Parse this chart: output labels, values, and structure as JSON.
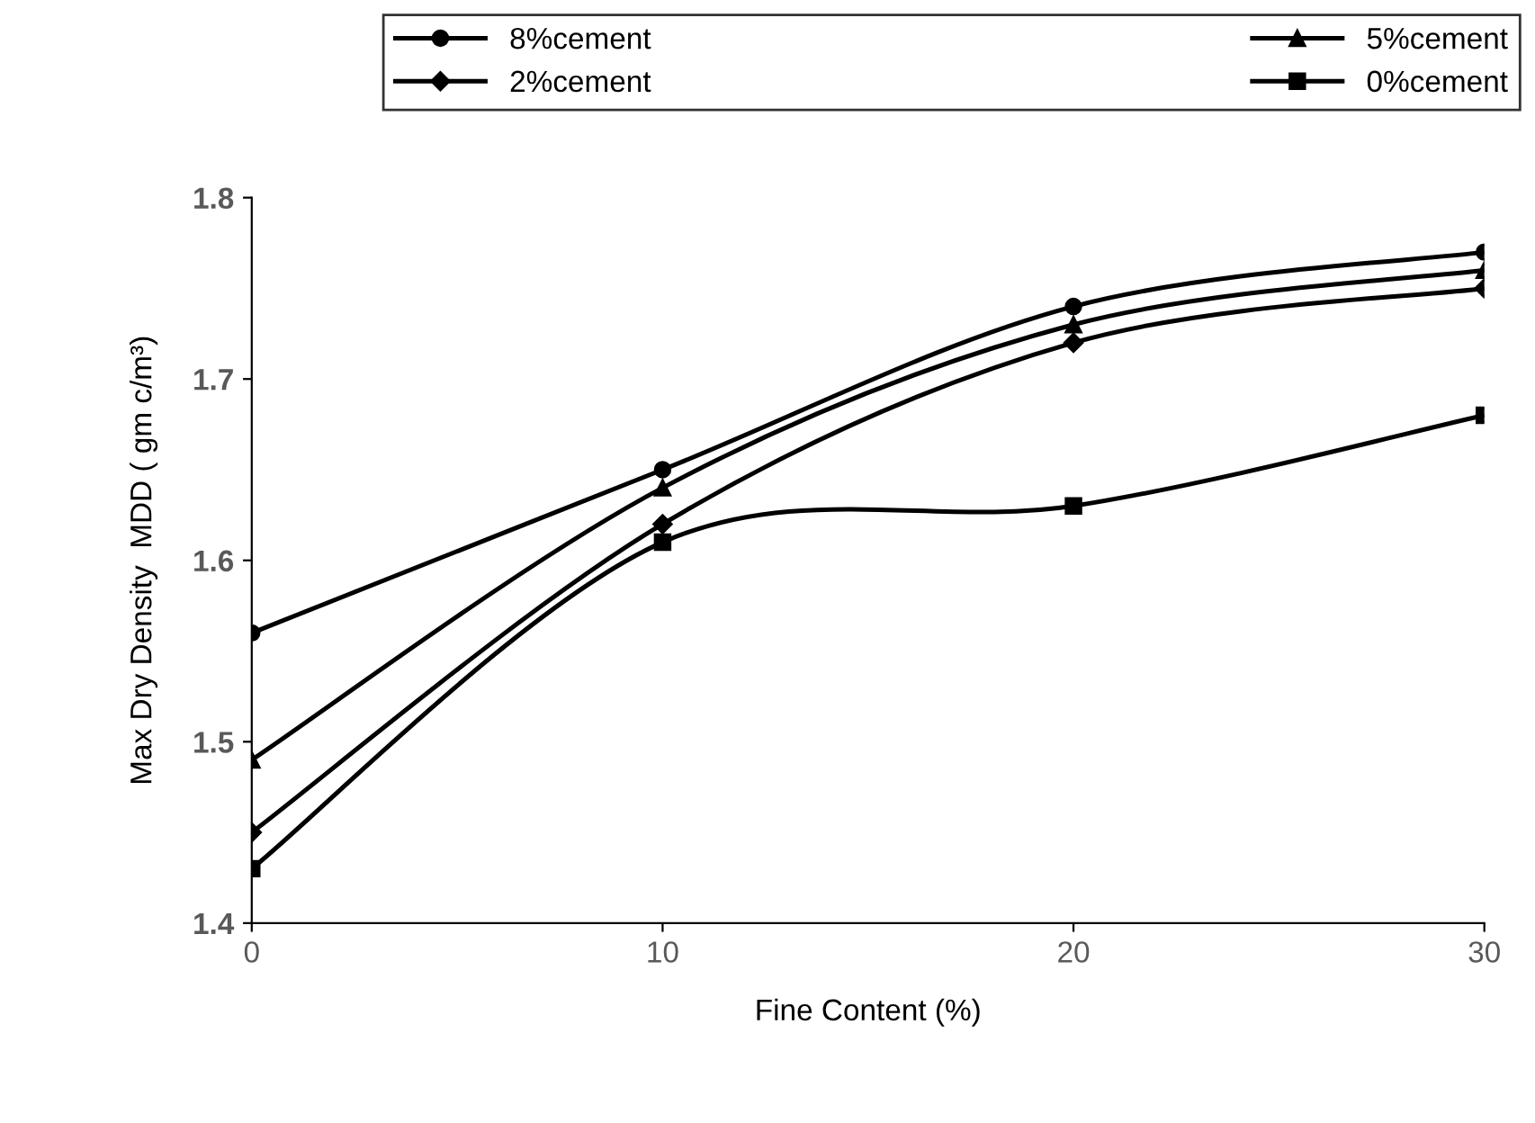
{
  "chart_data": {
    "type": "line",
    "xlabel": "Fine Content (%)",
    "ylabel": "Max Dry Density  MDD ( gm c/m³)",
    "x": [
      0,
      10,
      20,
      30
    ],
    "series": [
      {
        "name": "8%cement",
        "color": "#000000",
        "marker": "circle",
        "values": [
          1.56,
          1.65,
          1.74,
          1.77
        ]
      },
      {
        "name": "5%cement",
        "color": "#000000",
        "marker": "triangle",
        "values": [
          1.49,
          1.64,
          1.73,
          1.76
        ]
      },
      {
        "name": "2%cement",
        "color": "#000000",
        "marker": "diamond",
        "values": [
          1.45,
          1.62,
          1.72,
          1.75
        ]
      },
      {
        "name": "0%cement",
        "color": "#000000",
        "marker": "square",
        "values": [
          1.43,
          1.61,
          1.63,
          1.68
        ]
      }
    ],
    "xlim": [
      0,
      30
    ],
    "xticks": [
      0,
      10,
      20,
      30
    ],
    "ylim": [
      1.4,
      1.8
    ],
    "yticks": [
      1.4,
      1.5,
      1.6,
      1.7,
      1.8
    ],
    "grid": false,
    "legend": "top",
    "line_style": "solid"
  }
}
